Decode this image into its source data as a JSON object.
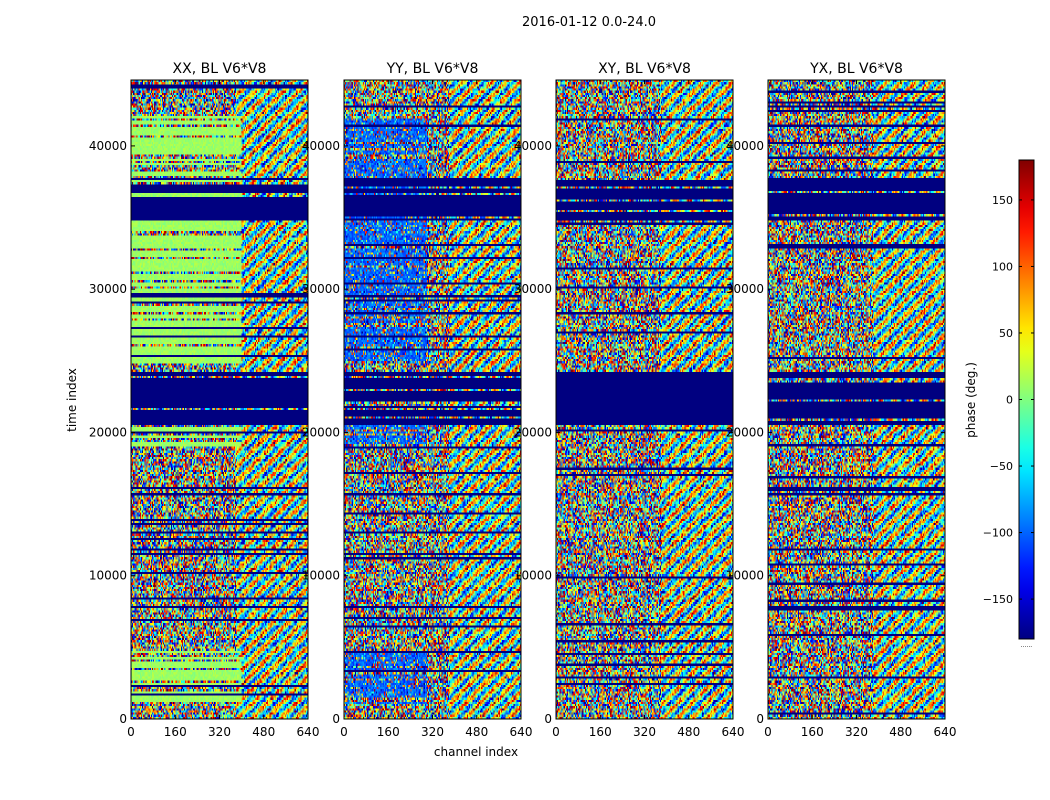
{
  "chart_data": {
    "type": "heatmap",
    "suptitle": "2016-01-12 0.0-24.0",
    "xlabel": "channel index",
    "ylabel": "time index",
    "xlim": [
      0,
      640
    ],
    "ylim": [
      0,
      44600
    ],
    "xticks": [
      0,
      160,
      320,
      480,
      640
    ],
    "yticks": [
      0,
      10000,
      20000,
      30000,
      40000
    ],
    "colorbar": {
      "label": "phase (deg.)",
      "range": [
        -180,
        180
      ],
      "ticks": [
        -150,
        -100,
        -50,
        0,
        50,
        100,
        150
      ],
      "ticklabels": [
        "−150",
        "−100",
        "−50",
        "0",
        "50",
        "100",
        "150"
      ],
      "colormap": "jet",
      "below_label": "......"
    },
    "panels": [
      {
        "title": "XX, BL V6*V8",
        "pol": "XX",
        "baseline": "V6*V8"
      },
      {
        "title": "YY, BL V6*V8",
        "pol": "YY",
        "baseline": "V6*V8"
      },
      {
        "title": "XY, BL V6*V8",
        "pol": "XY",
        "baseline": "V6*V8"
      },
      {
        "title": "YX, BL V6*V8",
        "pol": "YX",
        "baseline": "V6*V8"
      }
    ],
    "flagged_time_ranges": [
      [
        34800,
        37800
      ],
      [
        20500,
        24300
      ]
    ],
    "approx_coherent_phase_band": {
      "channel_max": 400,
      "time_ranges": [
        [
          1000,
          4800
        ],
        [
          19000,
          21000
        ],
        [
          24800,
          42000
        ]
      ]
    }
  },
  "colors": {
    "flagged": "#00007f",
    "background": "#ffffff",
    "axis": "#000000"
  }
}
